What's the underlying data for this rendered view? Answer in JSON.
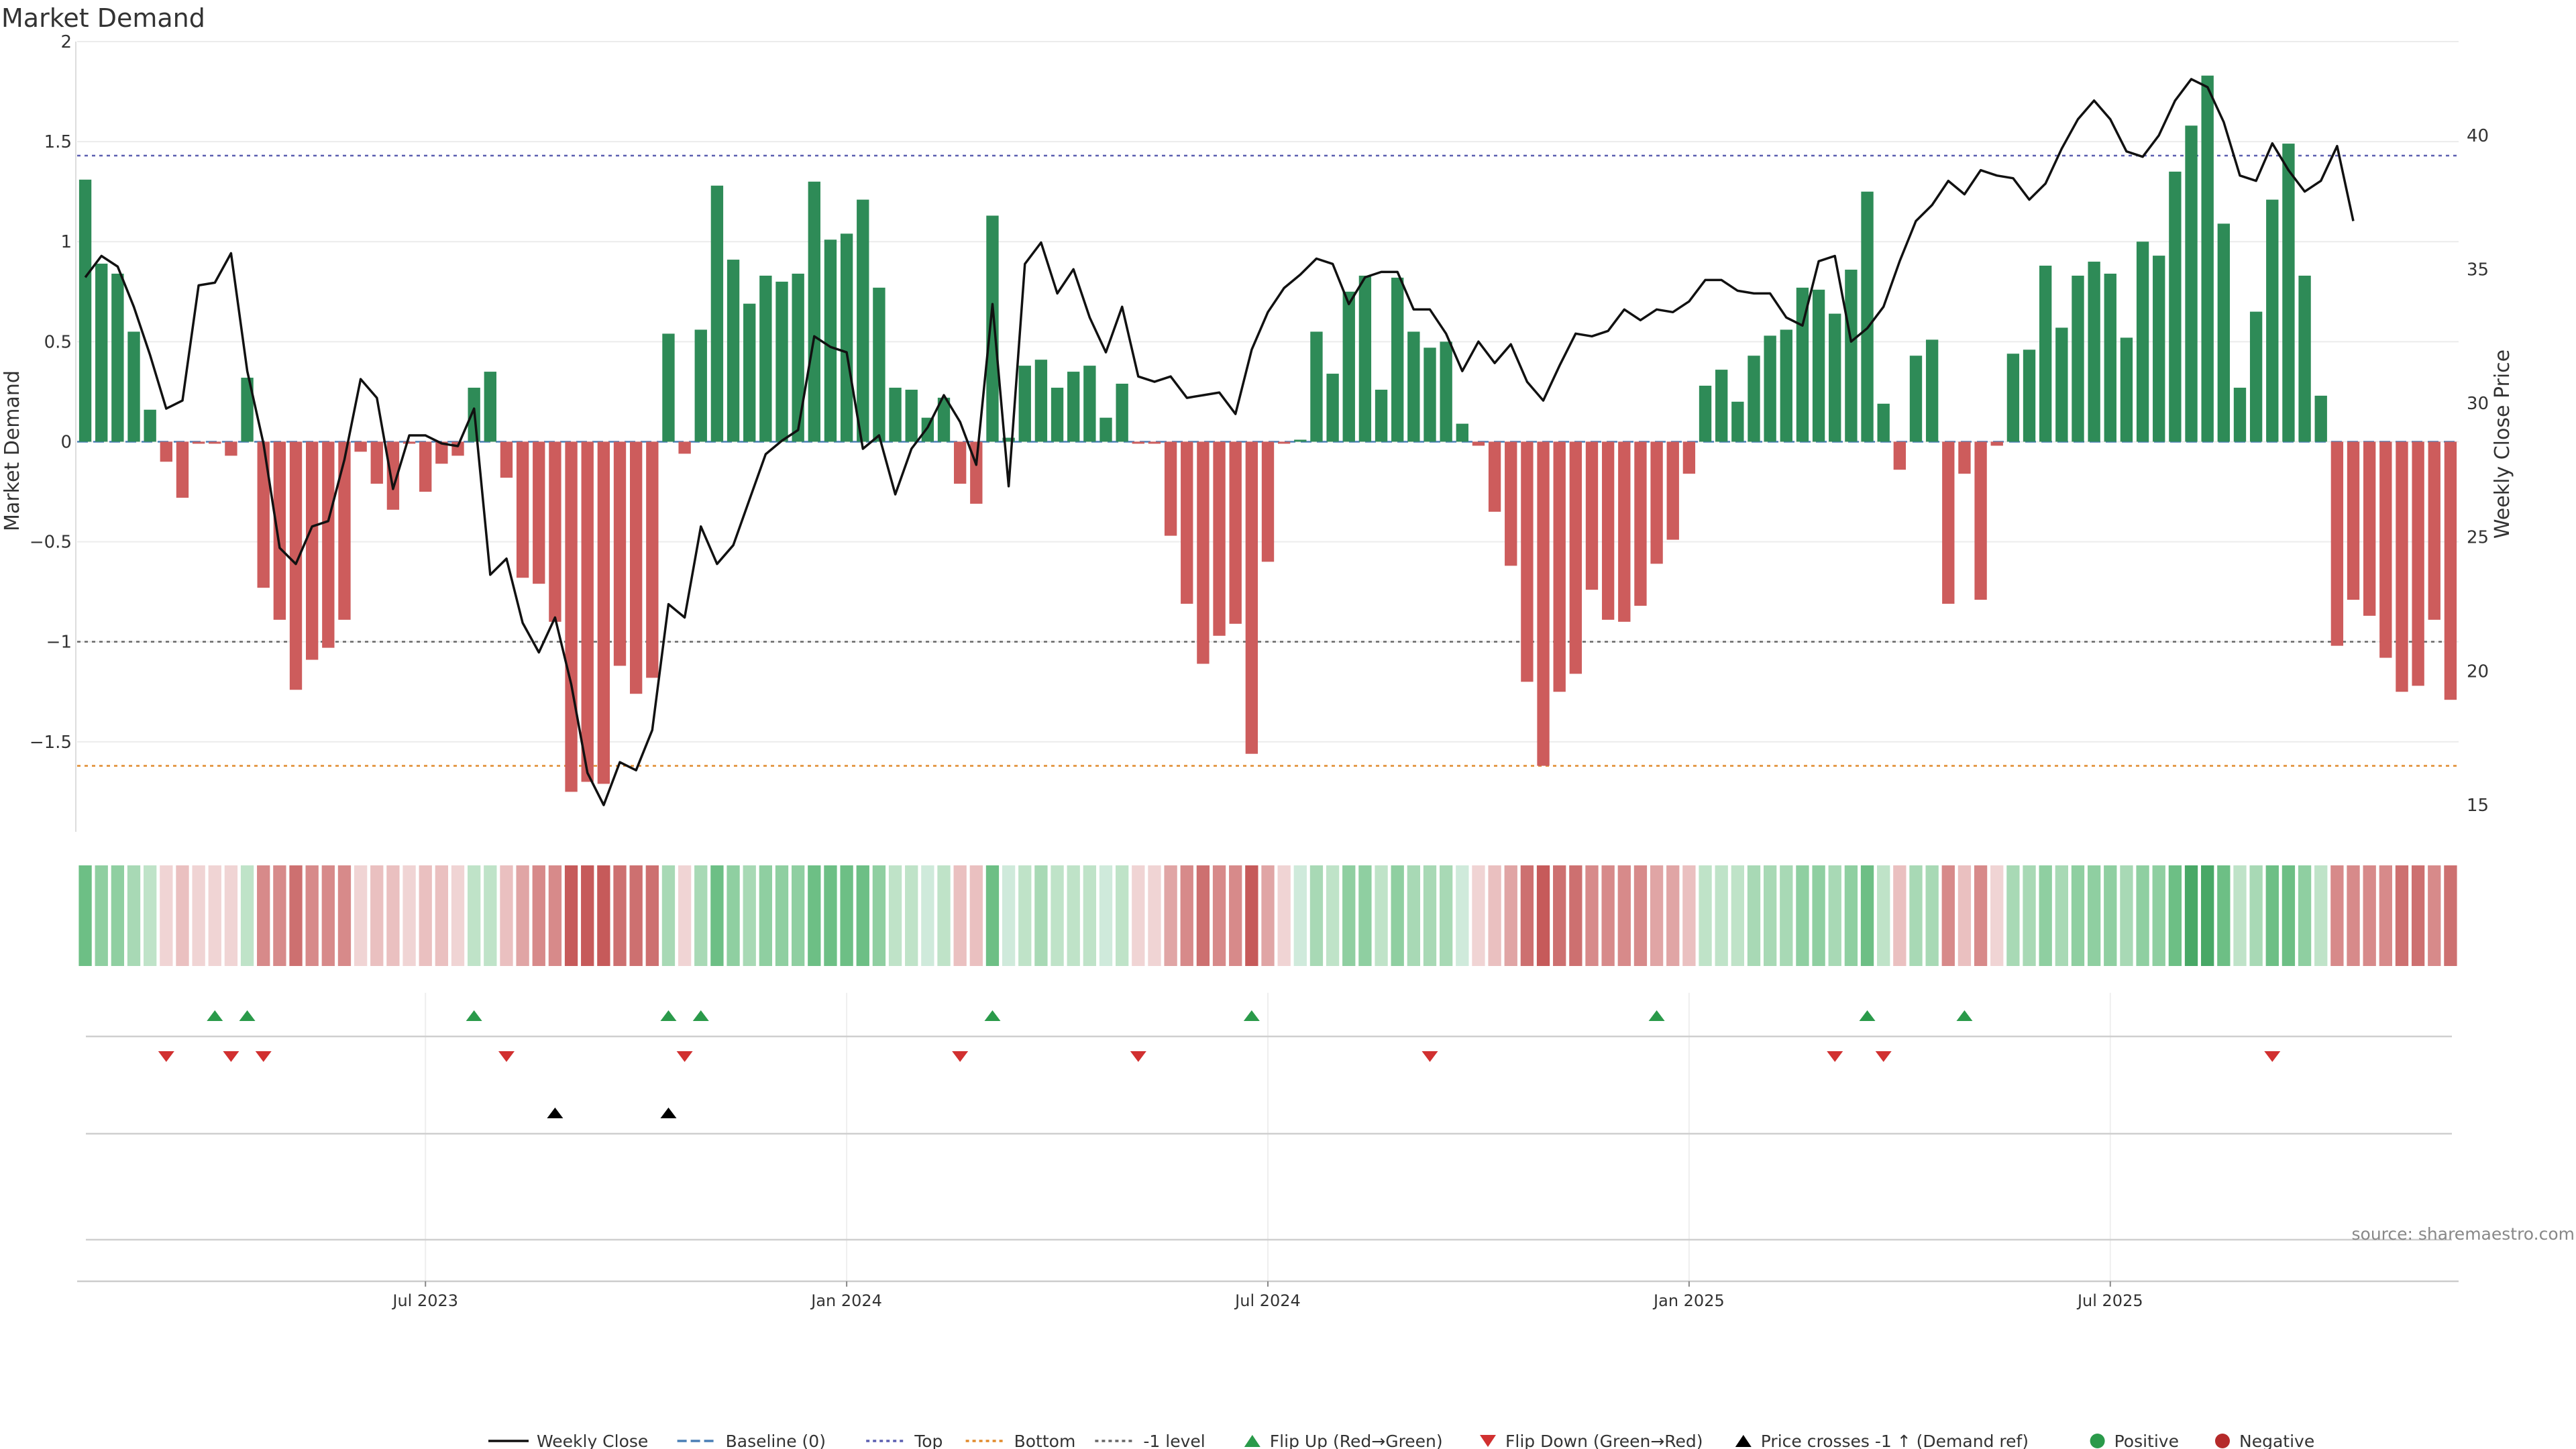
{
  "chart_data": {
    "type": "bar",
    "title": "Market Demand",
    "ylabel_left": "Market Demand",
    "ylabel_right": "Weekly Close Price",
    "ylim_left": [
      -1.95,
      2.0
    ],
    "ylim_right": [
      14.0,
      43.5
    ],
    "y_ticks_left": [
      2,
      1.5,
      1,
      0.5,
      0,
      -0.5,
      -1,
      -1.5
    ],
    "y_tick_labels_left": [
      "2",
      "1.5",
      "1",
      "0.5",
      "0",
      "−0.5",
      "−1",
      "−1.5"
    ],
    "y_ticks_right": [
      40,
      35,
      30,
      25,
      20,
      15
    ],
    "reference_lines": {
      "top": 1.43,
      "bottom": -1.62,
      "minus_one": -1.0,
      "baseline": 0
    },
    "x_tick_labels": [
      "Jul 2023",
      "Jan 2024",
      "Jul 2024",
      "Jan 2025",
      "Jul 2025"
    ],
    "x_tick_weeks": [
      21,
      47,
      73,
      99,
      125
    ],
    "demand": [
      1.31,
      0.89,
      0.84,
      0.55,
      0.16,
      -0.1,
      -0.28,
      -0.01,
      -0.01,
      -0.07,
      0.32,
      -0.73,
      -0.89,
      -1.24,
      -1.09,
      -1.03,
      -0.89,
      -0.05,
      -0.21,
      -0.34,
      -0.01,
      -0.25,
      -0.11,
      -0.07,
      0.27,
      0.35,
      -0.18,
      -0.68,
      -0.71,
      -0.9,
      -1.75,
      -1.7,
      -1.71,
      -1.12,
      -1.26,
      -1.18,
      0.54,
      -0.06,
      0.56,
      1.28,
      0.91,
      0.69,
      0.83,
      0.8,
      0.84,
      1.3,
      1.01,
      1.04,
      1.21,
      0.77,
      0.27,
      0.26,
      0.12,
      0.22,
      -0.21,
      -0.31,
      1.13,
      0.02,
      0.38,
      0.41,
      0.27,
      0.35,
      0.38,
      0.12,
      0.29,
      -0.01,
      -0.01,
      -0.47,
      -0.81,
      -1.11,
      -0.97,
      -0.91,
      -1.56,
      -0.6,
      -0.01,
      0.01,
      0.55,
      0.34,
      0.75,
      0.83,
      0.26,
      0.82,
      0.55,
      0.47,
      0.5,
      0.09,
      -0.02,
      -0.35,
      -0.62,
      -1.2,
      -1.62,
      -1.25,
      -1.16,
      -0.74,
      -0.89,
      -0.9,
      -0.82,
      -0.61,
      -0.49,
      -0.16,
      0.28,
      0.36,
      0.2,
      0.43,
      0.53,
      0.56,
      0.77,
      0.76,
      0.64,
      0.86,
      1.25,
      0.19,
      -0.14,
      0.43,
      0.51,
      -0.81,
      -0.16,
      -0.79,
      -0.02,
      0.44,
      0.46,
      0.88,
      0.57,
      0.83,
      0.9,
      0.84,
      0.52,
      1.0,
      0.93,
      1.35,
      1.58,
      1.83,
      1.09,
      0.27,
      0.65,
      1.21,
      1.49,
      0.83,
      0.23,
      -1.02,
      -0.79,
      -0.87,
      -1.08,
      -1.25,
      -1.22,
      -0.89,
      -1.29
    ],
    "series": [
      {
        "name": "Weekly Close",
        "color": "#111111",
        "values": [
          34.7,
          35.5,
          35.1,
          33.6,
          31.8,
          29.8,
          30.1,
          34.4,
          34.5,
          35.6,
          31.2,
          28.5,
          24.6,
          24.0,
          25.4,
          25.6,
          27.9,
          30.9,
          30.2,
          26.8,
          28.8,
          28.8,
          28.5,
          28.4,
          29.8,
          23.6,
          24.2,
          21.8,
          20.7,
          22.0,
          19.5,
          16.2,
          15.0,
          16.6,
          16.3,
          17.8,
          22.5,
          22.0,
          25.4,
          24.0,
          24.7,
          26.4,
          28.1,
          28.6,
          29.0,
          32.5,
          32.1,
          31.9,
          28.3,
          28.8,
          26.6,
          28.3,
          29.1,
          30.3,
          29.3,
          27.7,
          33.7,
          26.9,
          35.2,
          36.0,
          34.1,
          35.0,
          33.2,
          31.9,
          33.6,
          31.0,
          30.8,
          31.0,
          30.2,
          30.3,
          30.4,
          29.6,
          32.0,
          33.4,
          34.3,
          34.8,
          35.4,
          35.2,
          33.7,
          34.7,
          34.9,
          34.9,
          33.5,
          33.5,
          32.6,
          31.2,
          32.3,
          31.5,
          32.2,
          30.8,
          30.1,
          31.4,
          32.6,
          32.5,
          32.7,
          33.5,
          33.1,
          33.5,
          33.4,
          33.8,
          34.6,
          34.6,
          34.2,
          34.1,
          34.1,
          33.2,
          32.9,
          35.3,
          35.5,
          32.3,
          32.8,
          33.6,
          35.3,
          36.8,
          37.4,
          38.3,
          37.8,
          38.7,
          38.5,
          38.4,
          37.6,
          38.2,
          39.5,
          40.6,
          41.3,
          40.6,
          39.4,
          39.2,
          40.0,
          41.3,
          42.1,
          41.8,
          40.5,
          38.5,
          38.3,
          39.7,
          38.7,
          37.9,
          38.3,
          39.6,
          36.8
        ]
      }
    ],
    "heat_colors": [
      "#6dbf85",
      "#8fcfa1",
      "#a8d9b5",
      "#bfe3c8",
      "#cfeadb",
      "#f0d4d4",
      "#eac0c0",
      "#e0a5a5",
      "#d78a8a",
      "#cd7070",
      "#c65a5a",
      "#48a866"
    ],
    "flip_up_weeks": [
      8,
      10,
      24,
      36,
      38,
      56,
      72,
      97,
      110,
      116
    ],
    "flip_down_weeks": [
      5,
      9,
      11,
      26,
      37,
      54,
      65,
      83,
      108,
      111,
      135
    ],
    "price_cross_weeks": [
      29,
      36
    ],
    "source": "source: sharemaestro.com",
    "legend": [
      {
        "label": "Weekly Close",
        "kind": "line",
        "color": "#111111"
      },
      {
        "label": "Baseline (0)",
        "kind": "dash",
        "color": "#4a7fb5"
      },
      {
        "label": "Top",
        "kind": "dot",
        "color": "#5b5fb0"
      },
      {
        "label": "Bottom",
        "kind": "dot",
        "color": "#e08a2c"
      },
      {
        "label": "-1 level",
        "kind": "dot",
        "color": "#666666"
      },
      {
        "label": "Flip Up (Red→Green)",
        "kind": "tri-up",
        "color": "#2a9a4a"
      },
      {
        "label": "Flip Down (Green→Red)",
        "kind": "tri-down",
        "color": "#d13030"
      },
      {
        "label": "Price crosses -1 ↑ (Demand ref)",
        "kind": "tri-up",
        "color": "#000000"
      },
      {
        "label": "Positive",
        "kind": "circle",
        "color": "#2a9a4a"
      },
      {
        "label": "Negative",
        "kind": "circle",
        "color": "#b52a2a"
      }
    ],
    "colors": {
      "positive_bar": "#2e8b57",
      "negative_bar": "#cd5c5c",
      "top": "#5b5fb0",
      "bottom": "#e08a2c",
      "minus_one": "#666666",
      "baseline": "#4a7fb5"
    }
  }
}
